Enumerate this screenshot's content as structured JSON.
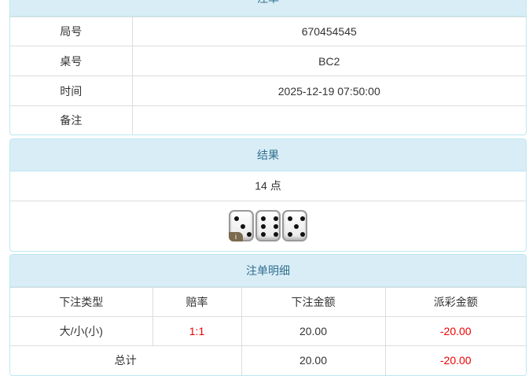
{
  "order": {
    "title": "注单",
    "rows": [
      {
        "label": "局号",
        "value": "670454545"
      },
      {
        "label": "桌号",
        "value": "BC2"
      },
      {
        "label": "时间",
        "value": "2025-12-19 07:50:00"
      },
      {
        "label": "备注",
        "value": ""
      }
    ]
  },
  "result": {
    "title": "结果",
    "points": "14 点",
    "dice": [
      3,
      6,
      5
    ],
    "info_icon": "i"
  },
  "detail": {
    "title": "注单明细",
    "headers": [
      "下注类型",
      "赔率",
      "下注金额",
      "派彩金额"
    ],
    "rows": [
      {
        "type": "大/小(小)",
        "odds": "1:1",
        "bet": "20.00",
        "payout": "-20.00"
      }
    ],
    "total": {
      "label": "总计",
      "bet": "20.00",
      "payout": "-20.00"
    }
  },
  "colors": {
    "header_bg": "#d9edf7",
    "header_text": "#31708f",
    "negative": "#e00000"
  }
}
